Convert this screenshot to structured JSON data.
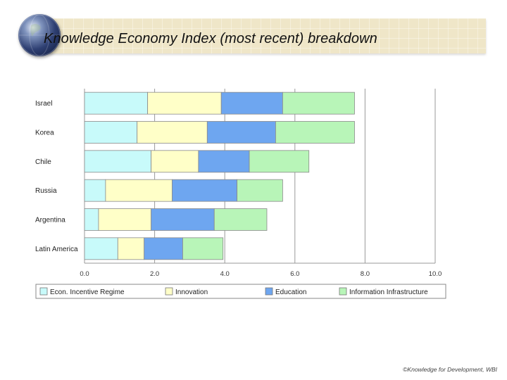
{
  "slide": {
    "title": "Knowledge Economy Index  (most recent) breakdown",
    "credit": "©Knowledge for Development, WBI"
  },
  "chart_data": {
    "type": "bar",
    "orientation": "horizontal",
    "stacked": true,
    "categories": [
      "Israel",
      "Korea",
      "Chile",
      "Russia",
      "Argentina",
      "Latin America"
    ],
    "series": [
      {
        "name": "Econ. Incentive Regime",
        "color": "#c8fafa",
        "values": [
          1.8,
          1.5,
          1.9,
          0.6,
          0.4,
          0.95
        ]
      },
      {
        "name": "Innovation",
        "color": "#ffffc8",
        "values": [
          2.1,
          2.0,
          1.35,
          1.9,
          1.5,
          0.75
        ]
      },
      {
        "name": "Education",
        "color": "#6ea6f0",
        "values": [
          1.75,
          1.95,
          1.45,
          1.85,
          1.8,
          1.1
        ]
      },
      {
        "name": "Information Infrastructure",
        "color": "#b8f5b8",
        "values": [
          2.05,
          2.25,
          1.7,
          1.3,
          1.5,
          1.15
        ]
      }
    ],
    "xlim": [
      0,
      10
    ],
    "xticks": [
      "0.0",
      "2.0",
      "4.0",
      "6.0",
      "8.0",
      "10.0"
    ],
    "grid": true,
    "legend_position": "bottom"
  }
}
